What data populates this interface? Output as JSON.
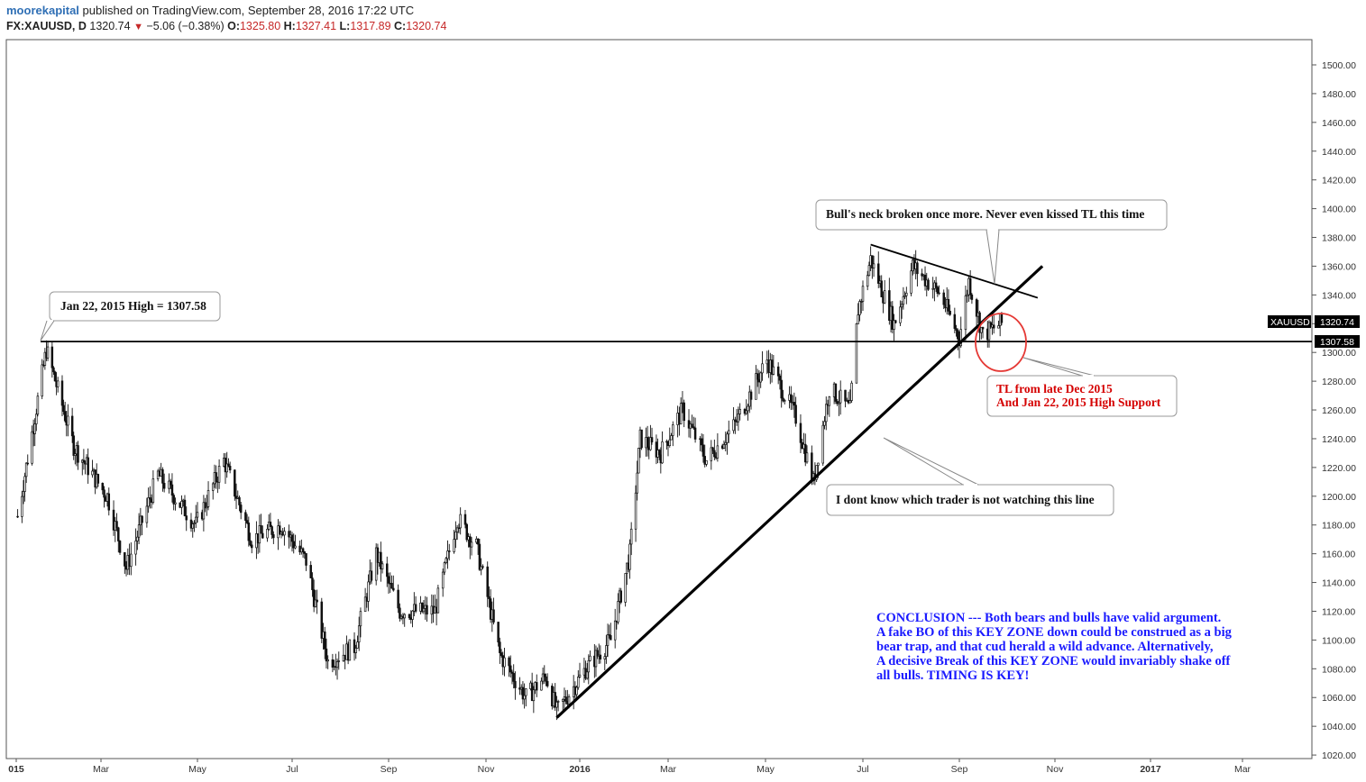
{
  "header": {
    "publisher": "moorekapital",
    "published_text": " published on TradingView.com, September 28, 2016 17:22 UTC"
  },
  "ohlc": {
    "symbol": "FX:XAUUSD, D",
    "last": "1320.74",
    "change": "−5.06 (−0.38%)",
    "o_label": "O:",
    "o": "1325.80",
    "h_label": "H:",
    "h": "1327.41",
    "l_label": "L:",
    "l": "1317.89",
    "c_label": "C:",
    "c": "1320.74"
  },
  "chart_data": {
    "type": "candlestick",
    "symbol": "XAUUSD",
    "ylim": [
      1020,
      1510
    ],
    "y_ticks": [
      "1020.00",
      "1040.00",
      "1060.00",
      "1080.00",
      "1100.00",
      "1120.00",
      "1140.00",
      "1160.00",
      "1180.00",
      "1200.00",
      "1220.00",
      "1240.00",
      "1260.00",
      "1280.00",
      "1300.00",
      "1320.00",
      "1340.00",
      "1360.00",
      "1380.00",
      "1400.00",
      "1420.00",
      "1440.00",
      "1460.00",
      "1480.00",
      "1500.00"
    ],
    "x_ticks": [
      "015",
      "Mar",
      "May",
      "Jul",
      "Sep",
      "Nov",
      "2016",
      "Mar",
      "May",
      "Jul",
      "Sep",
      "Nov",
      "2017",
      "Mar"
    ],
    "last_price_label": "1320.74",
    "last_price_symbol": "XAUUSD",
    "level_label": "1307.58",
    "approx_path": [
      {
        "date": "2015-01-02",
        "price": 1186
      },
      {
        "date": "2015-01-22",
        "price": 1302
      },
      {
        "date": "2015-02-10",
        "price": 1235
      },
      {
        "date": "2015-03-05",
        "price": 1200
      },
      {
        "date": "2015-03-17",
        "price": 1150
      },
      {
        "date": "2015-04-06",
        "price": 1215
      },
      {
        "date": "2015-04-30",
        "price": 1180
      },
      {
        "date": "2015-05-18",
        "price": 1225
      },
      {
        "date": "2015-06-05",
        "price": 1170
      },
      {
        "date": "2015-06-24",
        "price": 1180
      },
      {
        "date": "2015-07-10",
        "price": 1155
      },
      {
        "date": "2015-07-24",
        "price": 1085
      },
      {
        "date": "2015-08-10",
        "price": 1095
      },
      {
        "date": "2015-08-24",
        "price": 1160
      },
      {
        "date": "2015-09-08",
        "price": 1120
      },
      {
        "date": "2015-09-30",
        "price": 1120
      },
      {
        "date": "2015-10-14",
        "price": 1185
      },
      {
        "date": "2015-10-26",
        "price": 1165
      },
      {
        "date": "2015-11-10",
        "price": 1090
      },
      {
        "date": "2015-11-27",
        "price": 1060
      },
      {
        "date": "2015-12-10",
        "price": 1075
      },
      {
        "date": "2015-12-17",
        "price": 1050
      },
      {
        "date": "2016-01-05",
        "price": 1080
      },
      {
        "date": "2016-01-22",
        "price": 1100
      },
      {
        "date": "2016-02-04",
        "price": 1160
      },
      {
        "date": "2016-02-11",
        "price": 1240
      },
      {
        "date": "2016-02-25",
        "price": 1230
      },
      {
        "date": "2016-03-10",
        "price": 1260
      },
      {
        "date": "2016-03-25",
        "price": 1225
      },
      {
        "date": "2016-04-12",
        "price": 1250
      },
      {
        "date": "2016-05-02",
        "price": 1295
      },
      {
        "date": "2016-05-20",
        "price": 1255
      },
      {
        "date": "2016-05-31",
        "price": 1210
      },
      {
        "date": "2016-06-10",
        "price": 1275
      },
      {
        "date": "2016-06-23",
        "price": 1260
      },
      {
        "date": "2016-06-28",
        "price": 1330
      },
      {
        "date": "2016-07-06",
        "price": 1365
      },
      {
        "date": "2016-07-21",
        "price": 1320
      },
      {
        "date": "2016-08-02",
        "price": 1360
      },
      {
        "date": "2016-08-20",
        "price": 1340
      },
      {
        "date": "2016-09-01",
        "price": 1310
      },
      {
        "date": "2016-09-07",
        "price": 1350
      },
      {
        "date": "2016-09-16",
        "price": 1312
      },
      {
        "date": "2016-09-28",
        "price": 1320.74
      }
    ],
    "lines": [
      {
        "name": "support-level",
        "from": {
          "date": "2015-01-22",
          "price": 1307.58
        },
        "to": {
          "date": "2017-04-30",
          "price": 1307.58
        }
      },
      {
        "name": "uptrend-line",
        "from": {
          "date": "2015-12-17",
          "price": 1046
        },
        "to": {
          "date": "2016-10-24",
          "price": 1360
        }
      },
      {
        "name": "downtrend-line",
        "from": {
          "date": "2016-07-06",
          "price": 1375
        },
        "to": {
          "date": "2016-10-21",
          "price": 1338
        }
      }
    ]
  },
  "annotations": {
    "jan_high": "Jan 22, 2015 High = 1307.58",
    "bulls_neck": "Bull's neck broken once more. Never even kissed TL this time",
    "tl_support_line1": "TL from late Dec 2015",
    "tl_support_line2": "And Jan 22, 2015 High Support",
    "trader_watch": "I dont know which trader is not watching this line",
    "conclusion": [
      "CONCLUSION --- Both bears and bulls have valid argument.",
      "A fake BO of this KEY ZONE down could be construed as a big",
      "bear trap, and that cud herald a wild advance. Alternatively,",
      "A decisive Break of this KEY ZONE would invariably shake off",
      "all bulls. TIMING IS KEY!"
    ]
  },
  "colors": {
    "candle": "#111111",
    "trendline": "#000000",
    "circle": "#e53935",
    "red_text": "#d50000",
    "blue_text": "#1a1aff",
    "tag_bg": "#000000",
    "header_link": "#2f6fb5"
  }
}
